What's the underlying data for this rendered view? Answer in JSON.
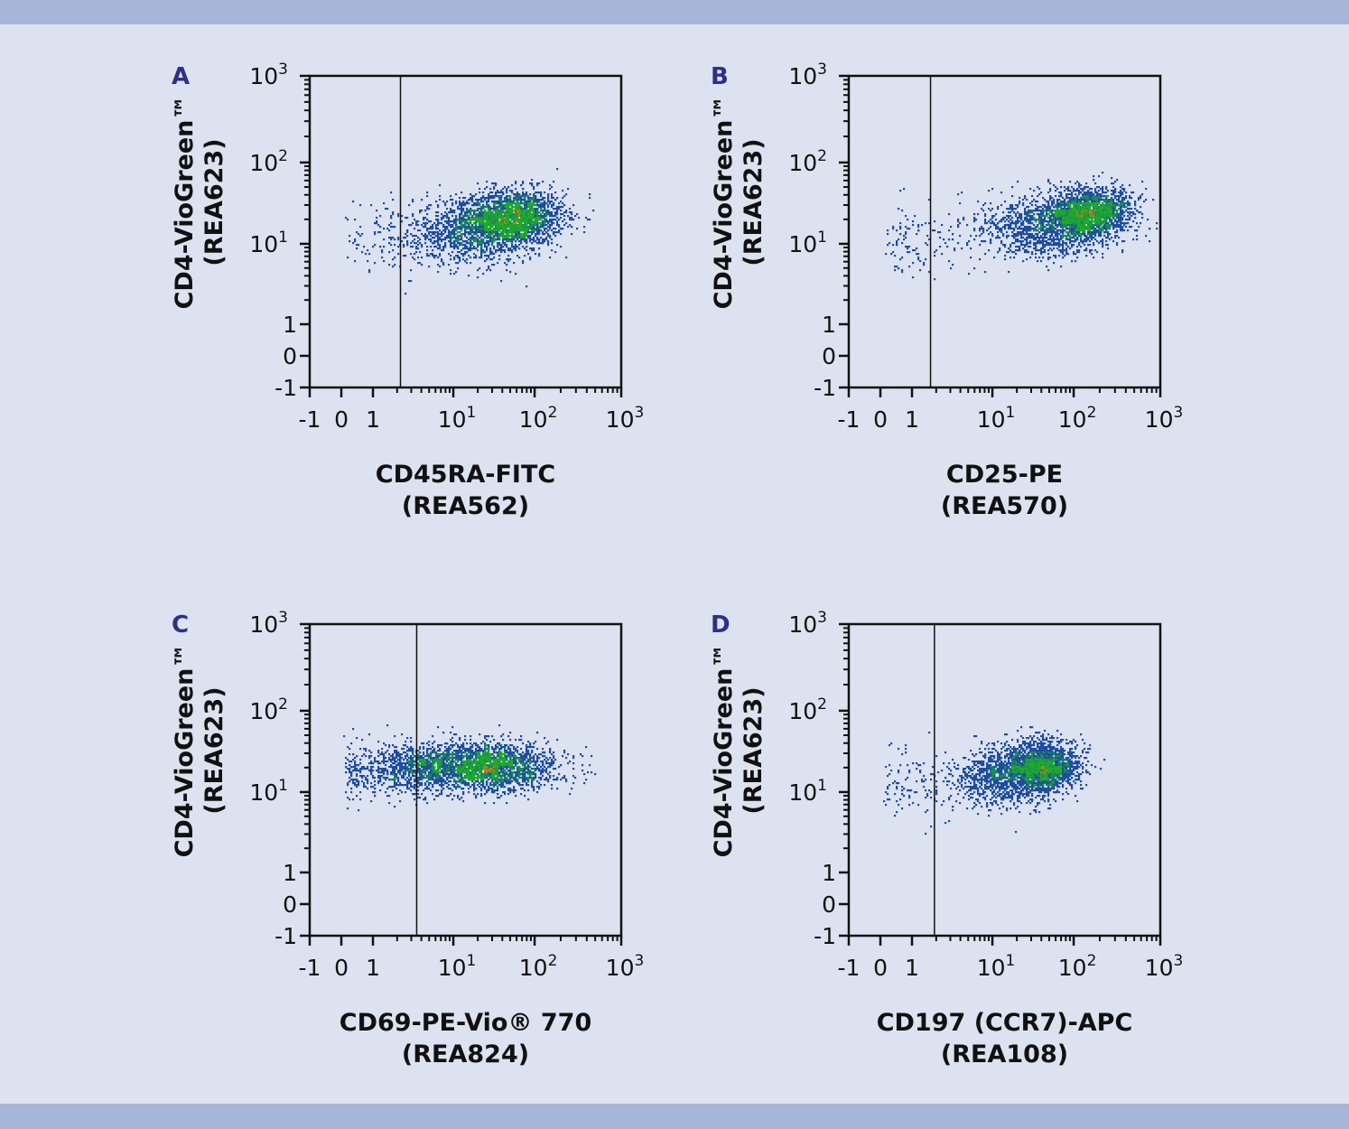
{
  "colors": {
    "background": "#dde2f0",
    "band": "#a6b4d8",
    "panel_letter": "#2e2f86",
    "axis": "#111111",
    "density_low": "#1f4e9a",
    "density_mid": "#1a8a5a",
    "density_high": "#1eaa2a",
    "density_peak": "#e0701a"
  },
  "chart_data": [
    {
      "type": "scatter",
      "panel": "A",
      "scale": "biexponential",
      "xlabel": {
        "line1": "CD45RA-FITC",
        "line2": "(REA562)"
      },
      "ylabel": {
        "line1": "CD4-VioGreen™",
        "line2": "(REA623)"
      },
      "xlim": [
        -1,
        1000
      ],
      "ylim": [
        -1,
        1000
      ],
      "gate_x": 2.2,
      "populations": [
        {
          "x_center": 60,
          "y_center": 22,
          "x_sd_decades": 0.28,
          "y_sd_decades": 0.17,
          "weight": 0.55
        },
        {
          "x_center": 18,
          "y_center": 15,
          "x_sd_decades": 0.38,
          "y_sd_decades": 0.2,
          "weight": 0.4
        },
        {
          "x_center": 2,
          "y_center": 12,
          "x_sd_decades": 0.4,
          "y_sd_decades": 0.2,
          "weight": 0.05
        }
      ]
    },
    {
      "type": "scatter",
      "panel": "B",
      "scale": "biexponential",
      "xlabel": {
        "line1": "CD25-PE",
        "line2": "(REA570)"
      },
      "ylabel": {
        "line1": "CD4-VioGreen™",
        "line2": "(REA623)"
      },
      "xlim": [
        -1,
        1000
      ],
      "ylim": [
        -1,
        1000
      ],
      "gate_x": 1.7,
      "populations": [
        {
          "x_center": 150,
          "y_center": 25,
          "x_sd_decades": 0.25,
          "y_sd_decades": 0.15,
          "weight": 0.6
        },
        {
          "x_center": 40,
          "y_center": 16,
          "x_sd_decades": 0.4,
          "y_sd_decades": 0.18,
          "weight": 0.36
        },
        {
          "x_center": 1.2,
          "y_center": 11,
          "x_sd_decades": 0.35,
          "y_sd_decades": 0.2,
          "weight": 0.04
        }
      ]
    },
    {
      "type": "scatter",
      "panel": "C",
      "scale": "biexponential",
      "xlabel": {
        "line1": "CD69-PE-Vio® 770",
        "line2": "(REA824)"
      },
      "ylabel": {
        "line1": "CD4-VioGreen™",
        "line2": "(REA623)"
      },
      "xlim": [
        -1,
        1000
      ],
      "ylim": [
        -1,
        1000
      ],
      "gate_x": 3.5,
      "populations": [
        {
          "x_center": 28,
          "y_center": 21,
          "x_sd_decades": 0.4,
          "y_sd_decades": 0.15,
          "weight": 0.65
        },
        {
          "x_center": 4,
          "y_center": 20,
          "x_sd_decades": 0.35,
          "y_sd_decades": 0.16,
          "weight": 0.3
        },
        {
          "x_center": 0.5,
          "y_center": 17,
          "x_sd_decades": 0.4,
          "y_sd_decades": 0.18,
          "weight": 0.05
        }
      ]
    },
    {
      "type": "scatter",
      "panel": "D",
      "scale": "biexponential",
      "xlabel": {
        "line1": "CD197 (CCR7)-APC",
        "line2": "(REA108)"
      },
      "ylabel": {
        "line1": "CD4-VioGreen™",
        "line2": "(REA623)"
      },
      "xlim": [
        -1,
        1000
      ],
      "ylim": [
        -1,
        1000
      ],
      "gate_x": 1.9,
      "populations": [
        {
          "x_center": 40,
          "y_center": 22,
          "x_sd_decades": 0.22,
          "y_sd_decades": 0.15,
          "weight": 0.6
        },
        {
          "x_center": 14,
          "y_center": 16,
          "x_sd_decades": 0.3,
          "y_sd_decades": 0.18,
          "weight": 0.36
        },
        {
          "x_center": 0.9,
          "y_center": 13,
          "x_sd_decades": 0.4,
          "y_sd_decades": 0.2,
          "weight": 0.04
        }
      ]
    }
  ],
  "axis_ticks": [
    {
      "value": -1,
      "base": "-1",
      "exp": ""
    },
    {
      "value": 0,
      "base": "0",
      "exp": ""
    },
    {
      "value": 1,
      "base": "1",
      "exp": ""
    },
    {
      "value": 10,
      "base": "10",
      "exp": "1"
    },
    {
      "value": 100,
      "base": "10",
      "exp": "2"
    },
    {
      "value": 1000,
      "base": "10",
      "exp": "3"
    }
  ]
}
